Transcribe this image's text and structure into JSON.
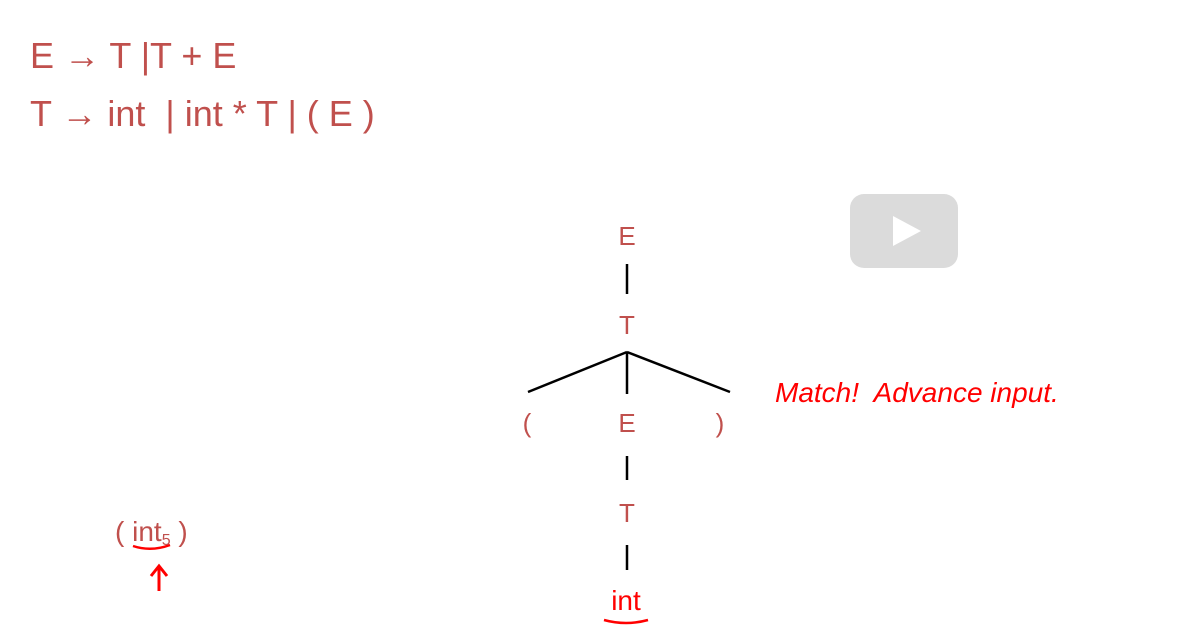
{
  "colors": {
    "grammar": "#c0504d",
    "node": "#c0504d",
    "highlight": "#ff0000",
    "edge": "#000000",
    "play_bg": "#bebebe"
  },
  "grammar": {
    "rule1": "E → T |T + E",
    "rule2": "T → int  | int * T | ( E )"
  },
  "tree": {
    "root": "E",
    "child1": "T",
    "lparen": "(",
    "middle_E": "E",
    "rparen": ")",
    "inner_T": "T",
    "leaf": "int"
  },
  "annotation": "Match!  Advance input.",
  "input": {
    "open": "( ",
    "token": "int",
    "sub": "5",
    "close": " )"
  },
  "icons": {
    "play": "play-icon",
    "pointer": "up-arrow-icon"
  }
}
